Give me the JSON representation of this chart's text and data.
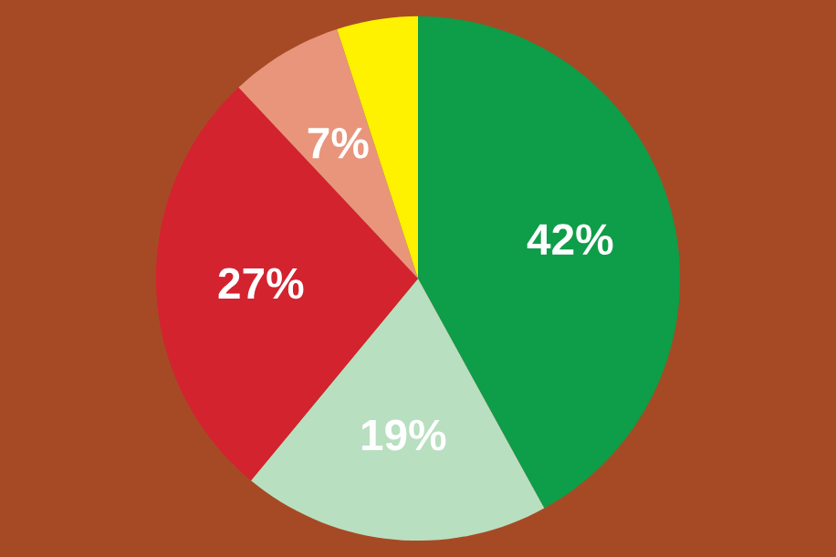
{
  "chart_data": {
    "type": "pie",
    "categories": [
      null,
      null,
      null,
      null,
      null
    ],
    "values": [
      42,
      19,
      27,
      7,
      5
    ],
    "colors": [
      "#0e9d48",
      "#b8dfc0",
      "#d3232f",
      "#e9957c",
      "#fff200"
    ],
    "value_labels": [
      "42%",
      "19%",
      "27%",
      "7%",
      null
    ]
  }
}
